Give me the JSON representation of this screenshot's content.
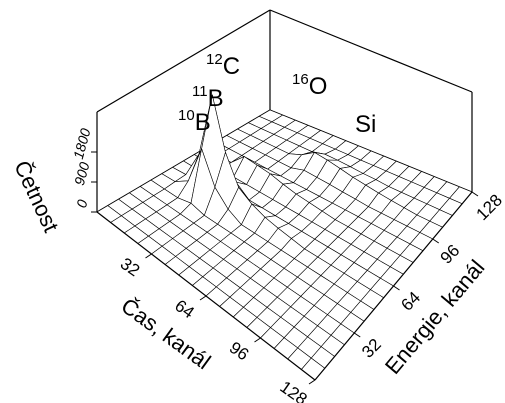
{
  "chart_data": {
    "type": "surface3d",
    "xlabel": "Čas, kanál",
    "ylabel": "Energie, kanál",
    "zlabel": "Četnost",
    "x": [
      0,
      8,
      16,
      24,
      32,
      40,
      48,
      56,
      64,
      72,
      80,
      88,
      96,
      104,
      112,
      120,
      128
    ],
    "y": [
      0,
      8,
      16,
      24,
      32,
      40,
      48,
      56,
      64,
      72,
      80,
      88,
      96,
      104,
      112,
      120,
      128
    ],
    "z": [
      [
        0,
        0,
        0,
        0,
        0,
        0,
        0,
        0,
        0,
        0,
        0,
        0,
        0,
        0,
        0,
        0,
        0
      ],
      [
        0,
        0,
        0,
        0,
        0,
        0,
        20,
        30,
        0,
        0,
        0,
        0,
        0,
        0,
        0,
        0,
        0
      ],
      [
        0,
        0,
        0,
        0,
        0,
        0,
        300,
        900,
        200,
        0,
        0,
        0,
        0,
        0,
        0,
        0,
        0
      ],
      [
        0,
        0,
        0,
        0,
        0,
        100,
        1500,
        2900,
        800,
        0,
        400,
        0,
        0,
        0,
        0,
        0,
        0
      ],
      [
        0,
        0,
        0,
        0,
        0,
        0,
        600,
        1400,
        300,
        0,
        350,
        0,
        0,
        0,
        0,
        0,
        0
      ],
      [
        0,
        0,
        0,
        0,
        0,
        0,
        200,
        600,
        0,
        0,
        300,
        0,
        0,
        150,
        0,
        0,
        0
      ],
      [
        0,
        0,
        0,
        0,
        0,
        0,
        0,
        350,
        0,
        0,
        200,
        0,
        120,
        400,
        100,
        0,
        0
      ],
      [
        0,
        0,
        0,
        0,
        0,
        0,
        0,
        200,
        0,
        0,
        120,
        0,
        100,
        350,
        90,
        0,
        0
      ],
      [
        0,
        0,
        0,
        0,
        0,
        0,
        0,
        120,
        0,
        0,
        80,
        0,
        80,
        280,
        70,
        0,
        0
      ],
      [
        0,
        0,
        0,
        0,
        0,
        0,
        0,
        60,
        0,
        0,
        40,
        0,
        50,
        200,
        40,
        0,
        0
      ],
      [
        0,
        0,
        0,
        0,
        0,
        0,
        0,
        0,
        0,
        0,
        0,
        0,
        30,
        150,
        30,
        0,
        0
      ],
      [
        0,
        0,
        0,
        0,
        0,
        0,
        0,
        0,
        0,
        0,
        0,
        0,
        0,
        100,
        0,
        0,
        0
      ],
      [
        0,
        0,
        0,
        0,
        0,
        0,
        0,
        0,
        0,
        0,
        0,
        0,
        0,
        60,
        0,
        0,
        0
      ],
      [
        0,
        0,
        0,
        0,
        0,
        0,
        0,
        0,
        0,
        0,
        0,
        0,
        0,
        30,
        0,
        0,
        0
      ],
      [
        0,
        0,
        0,
        0,
        0,
        0,
        0,
        0,
        0,
        0,
        0,
        0,
        0,
        0,
        0,
        0,
        0
      ],
      [
        0,
        0,
        0,
        0,
        0,
        0,
        0,
        0,
        0,
        0,
        0,
        0,
        0,
        0,
        0,
        0,
        0
      ],
      [
        0,
        0,
        0,
        0,
        0,
        0,
        0,
        0,
        0,
        0,
        0,
        0,
        0,
        0,
        0,
        0,
        0
      ]
    ],
    "xlim": [
      0,
      128
    ],
    "ylim": [
      0,
      128
    ],
    "zlim": [
      0,
      3000
    ],
    "xticks": [
      32,
      64,
      96,
      128
    ],
    "yticks": [
      32,
      64,
      96,
      128
    ],
    "zticks": [
      0,
      900,
      1800
    ],
    "annotations": [
      {
        "mass": "12",
        "element": "C"
      },
      {
        "mass": "11",
        "element": "B"
      },
      {
        "mass": "10",
        "element": "B"
      },
      {
        "mass": "16",
        "element": "O"
      },
      {
        "element": "Si"
      }
    ],
    "color": "#000000"
  }
}
